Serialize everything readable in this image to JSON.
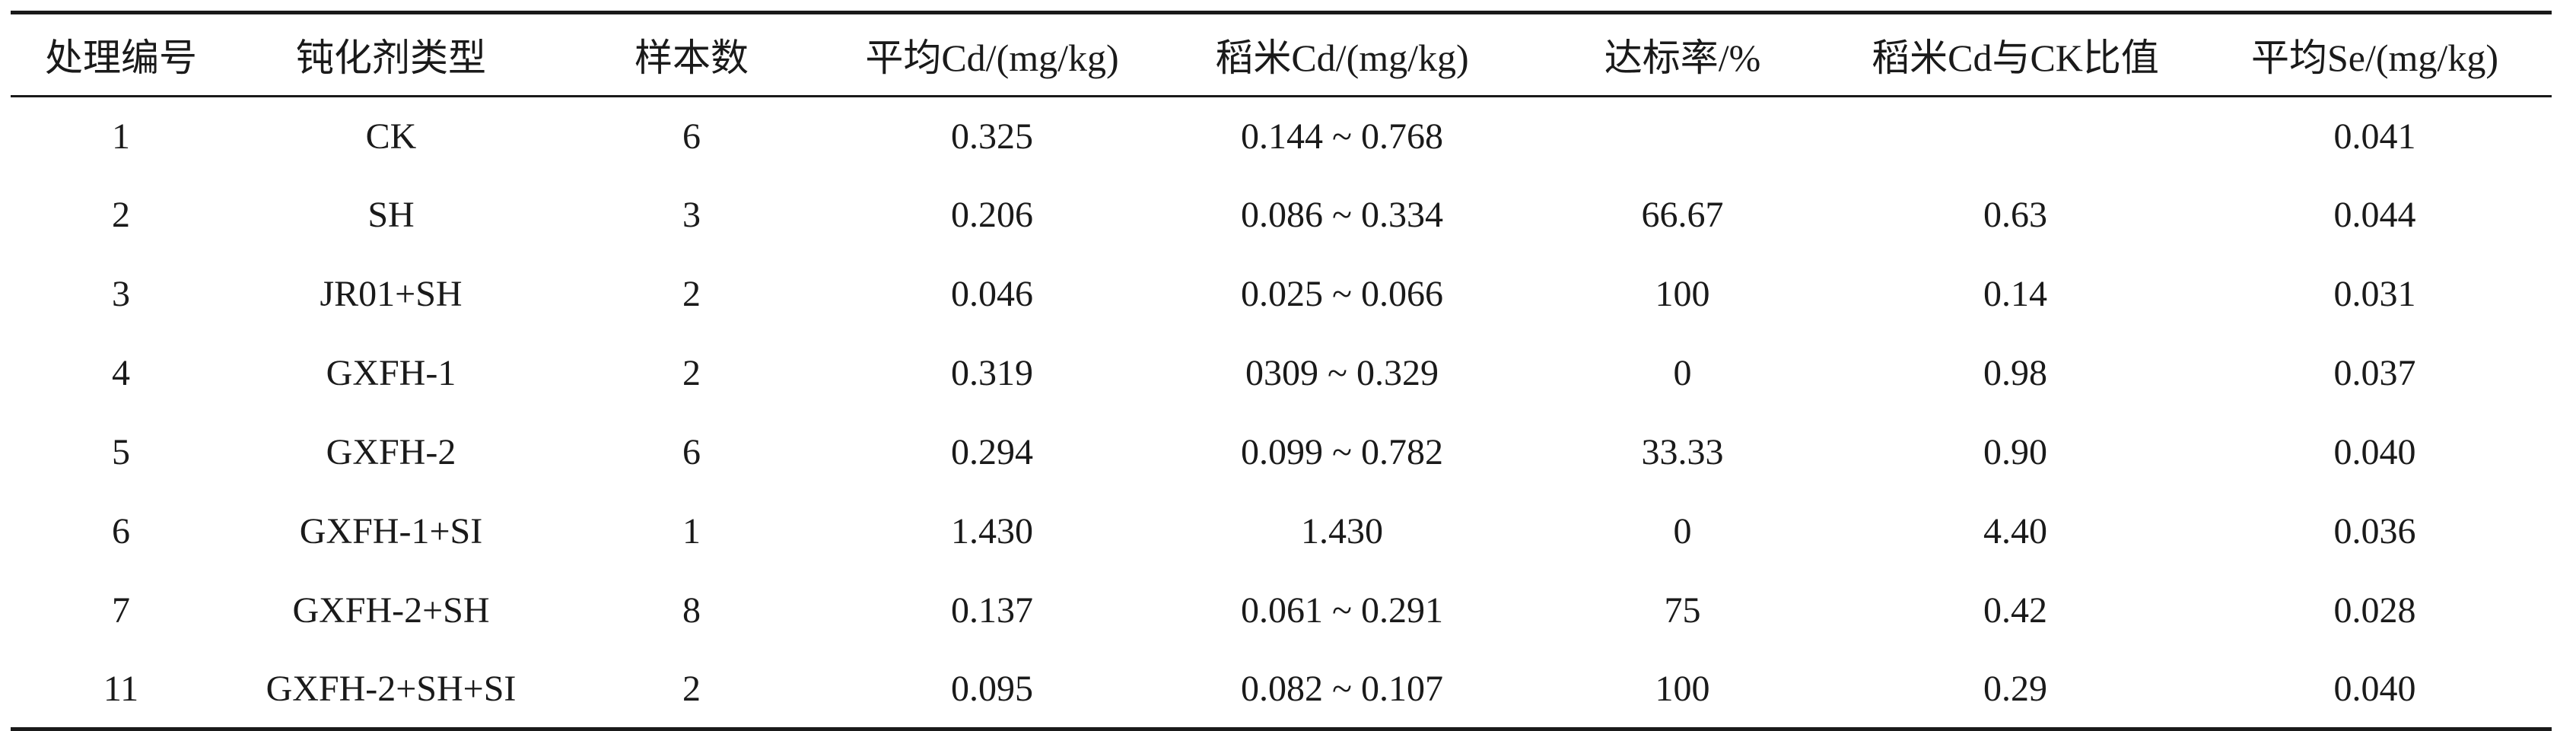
{
  "table": {
    "headers": [
      "处理编号",
      "钝化剂类型",
      "样本数",
      "平均Cd/(mg/kg)",
      "稻米Cd/(mg/kg)",
      "达标率/%",
      "稻米Cd与CK比值",
      "平均Se/(mg/kg)"
    ],
    "rows": [
      [
        "1",
        "CK",
        "6",
        "0.325",
        "0.144 ~ 0.768",
        "",
        "",
        "0.041"
      ],
      [
        "2",
        "SH",
        "3",
        "0.206",
        "0.086 ~ 0.334",
        "66.67",
        "0.63",
        "0.044"
      ],
      [
        "3",
        "JR01+SH",
        "2",
        "0.046",
        "0.025 ~ 0.066",
        "100",
        "0.14",
        "0.031"
      ],
      [
        "4",
        "GXFH-1",
        "2",
        "0.319",
        "0309 ~ 0.329",
        "0",
        "0.98",
        "0.037"
      ],
      [
        "5",
        "GXFH-2",
        "6",
        "0.294",
        "0.099 ~ 0.782",
        "33.33",
        "0.90",
        "0.040"
      ],
      [
        "6",
        "GXFH-1+SI",
        "1",
        "1.430",
        "1.430",
        "0",
        "4.40",
        "0.036"
      ],
      [
        "7",
        "GXFH-2+SH",
        "8",
        "0.137",
        "0.061 ~ 0.291",
        "75",
        "0.42",
        "0.028"
      ],
      [
        "11",
        "GXFH-2+SH+SI",
        "2",
        "0.095",
        "0.082 ~ 0.107",
        "100",
        "0.29",
        "0.040"
      ]
    ]
  }
}
